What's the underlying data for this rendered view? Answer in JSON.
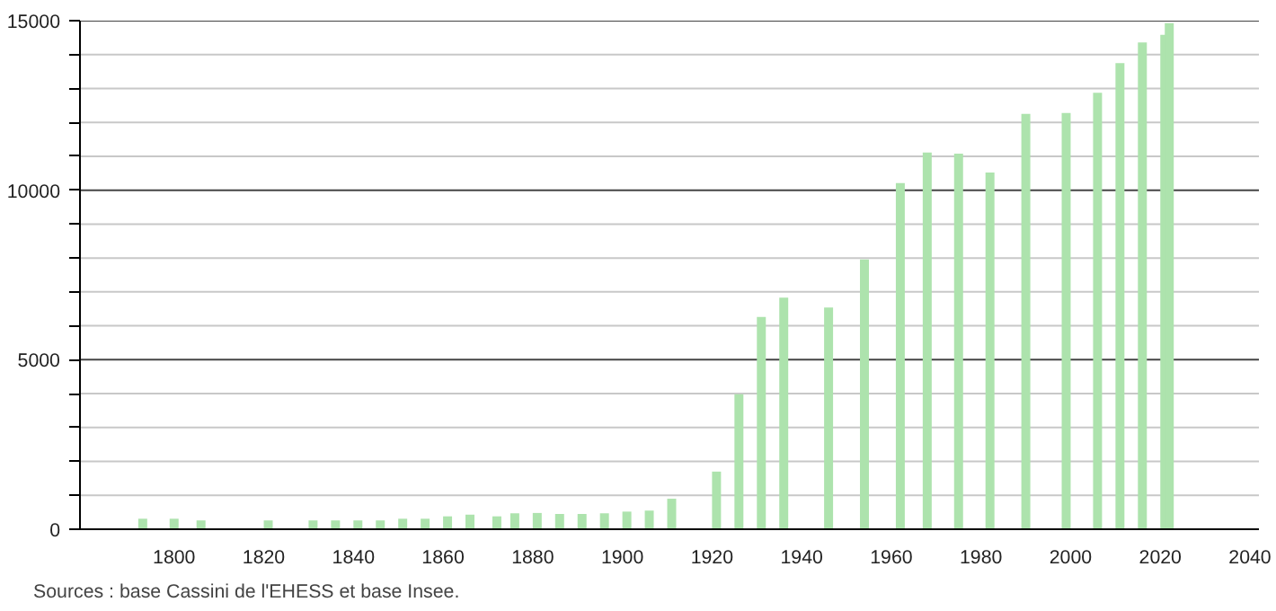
{
  "chart_data": {
    "type": "bar",
    "x": [
      1793,
      1800,
      1806,
      1821,
      1831,
      1836,
      1841,
      1846,
      1851,
      1856,
      1861,
      1866,
      1872,
      1876,
      1881,
      1886,
      1891,
      1896,
      1901,
      1906,
      1911,
      1921,
      1926,
      1931,
      1936,
      1946,
      1954,
      1962,
      1968,
      1975,
      1982,
      1990,
      1999,
      2006,
      2011,
      2016,
      2021,
      2022
    ],
    "values": [
      310,
      310,
      260,
      260,
      260,
      260,
      260,
      260,
      310,
      310,
      380,
      430,
      380,
      470,
      480,
      450,
      450,
      470,
      520,
      550,
      900,
      1700,
      3980,
      6260,
      6830,
      6540,
      7960,
      10210,
      11110,
      11080,
      10520,
      12250,
      12280,
      12870,
      13750,
      14360,
      14580,
      14930
    ],
    "color": "#ade3ad",
    "xlim": [
      1779,
      2042
    ],
    "xticks": [
      1800,
      1820,
      1840,
      1860,
      1880,
      1900,
      1920,
      1940,
      1960,
      1980,
      2000,
      2020,
      2040
    ],
    "ylim": [
      0,
      15000
    ],
    "yticks": [
      0,
      {
        "value": 1000,
        "label": null
      },
      {
        "value": 2000,
        "label": null
      },
      {
        "value": 3000,
        "label": null
      },
      {
        "value": 4000,
        "label": null
      },
      5000,
      {
        "value": 6000,
        "label": null
      },
      {
        "value": 7000,
        "label": null
      },
      {
        "value": 8000,
        "label": null
      },
      {
        "value": 9000,
        "label": null
      },
      10000,
      {
        "value": 11000,
        "label": null
      },
      {
        "value": 12000,
        "label": null
      },
      {
        "value": 13000,
        "label": null
      },
      {
        "value": 14000,
        "label": null
      },
      15000
    ],
    "grid": "y",
    "annotations": [
      "Sources : base Cassini de l'EHESS et base Insee."
    ]
  }
}
